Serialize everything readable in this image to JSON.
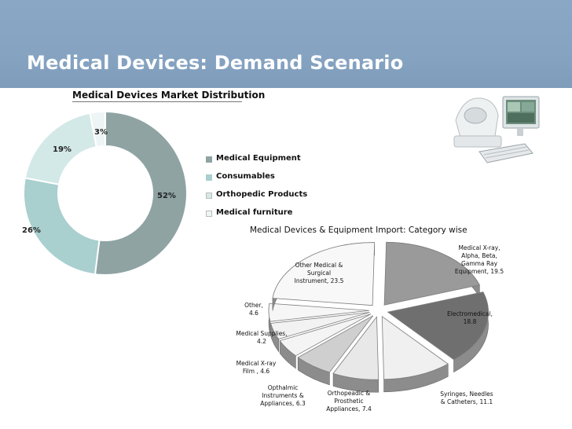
{
  "slide": {
    "title": "Medical Devices: Demand Scenario"
  },
  "chart_data": [
    {
      "type": "pie",
      "donut": true,
      "title": "Medical Devices Market Distribution",
      "categories": [
        "Medical Equipment",
        "Consumables",
        "Orthopedic Products",
        "Medical furniture"
      ],
      "values": [
        52,
        26,
        19,
        3
      ],
      "data_labels": [
        "52%",
        "26%",
        "19%",
        "3%"
      ],
      "colors": [
        "#8fa3a3",
        "#a9cfcf",
        "#d3e9e7",
        "#eef6f5"
      ],
      "legend": "right"
    },
    {
      "type": "pie",
      "exploded": true,
      "three_d": true,
      "title": "Medical Devices & Equipment Import: Category wise",
      "categories": [
        "Medical X-ray, Alpha, Beta, Gamma Ray Equipment",
        "Electromedical",
        "Syringes, Needles & Catheters",
        "Orthopeadic & Prosthetic Appliances",
        "Opthalmic Instruments & Appliances",
        "Medical X-ray Film",
        "Medical Supplies",
        "Other",
        "Other Medical & Surgical Instrument"
      ],
      "values": [
        19.5,
        18.8,
        11.1,
        7.4,
        6.3,
        4.6,
        4.2,
        4.6,
        23.5
      ],
      "labels": [
        [
          "Medical X-ray,",
          "Alpha, Beta,",
          "Gamma Ray",
          "Equipment, 19.5"
        ],
        [
          "Electromedical,",
          "18.8"
        ],
        [
          "Syringes, Needles",
          "& Catheters, 11.1"
        ],
        [
          "Orthopeadic &",
          "Prosthetic",
          "Appliances, 7.4"
        ],
        [
          "Opthalmic",
          "Instruments &",
          "Appliances, 6.3"
        ],
        [
          "Medical X-ray",
          "Film , 4.6"
        ],
        [
          "Medical Supplies,",
          "4.2"
        ],
        [
          "Other,",
          "4.6"
        ],
        [
          "Other Medical &",
          "Surgical",
          "Instrument, 23.5"
        ]
      ],
      "colors": [
        "#9a9a9a",
        "#6f6f6f",
        "#f0f0f0",
        "#e8e8e8",
        "#cfcfcf",
        "#f4f4f4",
        "#f2f2f2",
        "#f6f6f6",
        "#f8f8f8"
      ]
    }
  ],
  "decor": {
    "image_icon": "medical-workstation-icon"
  }
}
